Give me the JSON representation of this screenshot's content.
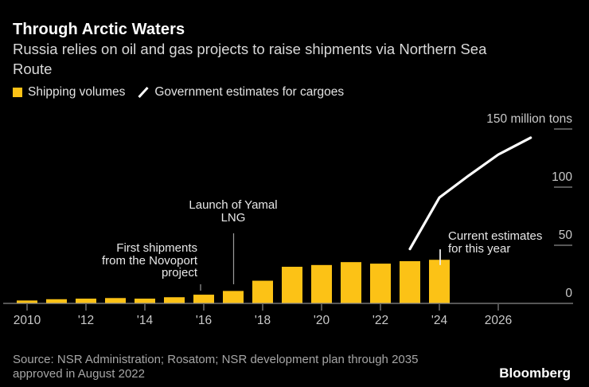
{
  "header": {
    "brand": "Bloomberg"
  },
  "footer": {
    "source": "Source: NSR Administration; Rosatom; NSR development plan through 2035\napproved in August 2022"
  },
  "chart_data": {
    "type": "bar",
    "title": "Through Arctic Waters",
    "subtitle": "Russia relies on oil and gas projects to raise shipments via Northern Sea\nRoute",
    "unit": "million tons",
    "background_color": "#000000",
    "bar_color": "#FCC216",
    "line_color": "#FFFFFF",
    "legend_position": "top-left",
    "grid": "off",
    "x_axis": {
      "years": [
        2010,
        2012,
        2014,
        2016,
        2018,
        2020,
        2022,
        2024,
        2026
      ],
      "labels": [
        "2010",
        "'12",
        "'14",
        "'16",
        "'18",
        "'20",
        "'22",
        "'24",
        "2026"
      ],
      "range": [
        2009.2,
        2028.5
      ]
    },
    "y_axis": {
      "side": "right",
      "ticks": [
        0,
        50,
        100,
        150
      ],
      "labels": [
        "0",
        "50",
        "100",
        "150 million tons"
      ],
      "range": [
        0,
        150
      ]
    },
    "series": [
      {
        "name": "Shipping volumes",
        "type": "bar",
        "color": "#FCC216",
        "points": [
          [
            2010,
            2.5
          ],
          [
            2011,
            3.6
          ],
          [
            2012,
            4.1
          ],
          [
            2013,
            4.6
          ],
          [
            2014,
            4.1
          ],
          [
            2015,
            5.3
          ],
          [
            2016,
            7.5
          ],
          [
            2017,
            10.7
          ],
          [
            2018,
            19.5
          ],
          [
            2019,
            31.5
          ],
          [
            2020,
            33.0
          ],
          [
            2021,
            35.5
          ],
          [
            2022,
            34.2
          ],
          [
            2023,
            36.3
          ],
          [
            2024,
            37.5
          ]
        ]
      },
      {
        "name": "Government estimates for cargoes",
        "type": "line",
        "color": "#FFFFFF",
        "points": [
          [
            2023,
            46.8
          ],
          [
            2024,
            91
          ],
          [
            2025,
            110
          ],
          [
            2026,
            128
          ],
          [
            2027.1,
            142.5
          ]
        ]
      }
    ],
    "estimate_marker": {
      "year": 2024,
      "low": 33,
      "high": 46.5
    },
    "annotations": {
      "novoport": {
        "text": "First shipments\nfrom the Novoport\nproject",
        "year": 2016
      },
      "yamal": {
        "text": "Launch of Yamal\nLNG",
        "year": 2017
      },
      "current": {
        "text": "Current estimates\nfor this year",
        "year": 2024
      }
    }
  }
}
